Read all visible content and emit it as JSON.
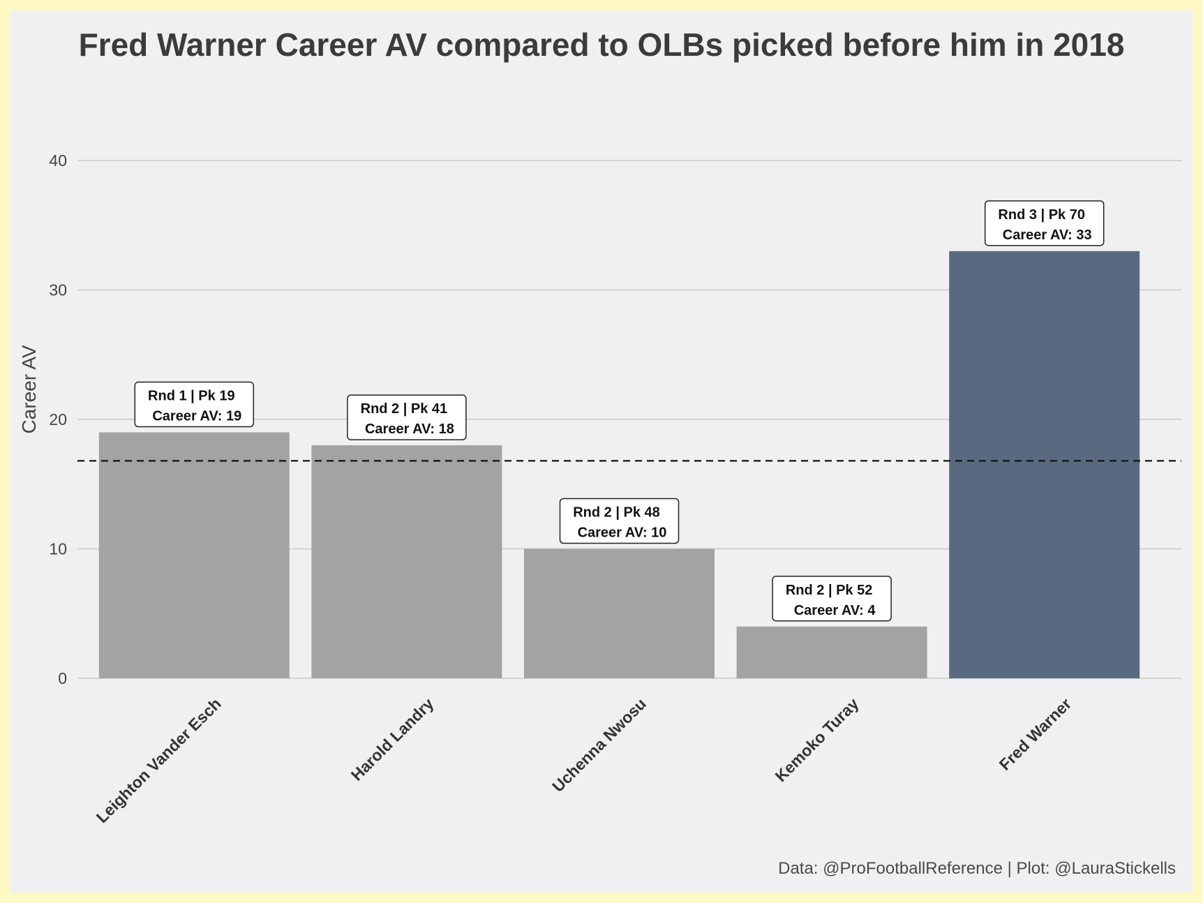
{
  "chart_data": {
    "type": "bar",
    "title": "Fred Warner Career AV compared to OLBs picked before him in 2018",
    "ylabel": "Career AV",
    "xlabel": "",
    "caption": "Data: @ProFootballReference | Plot: @LauraStickells",
    "ylim": [
      0,
      45
    ],
    "yticks": [
      0,
      10,
      20,
      30,
      40
    ],
    "grid": true,
    "legend": "none",
    "categories": [
      "Leighton Vander Esch",
      "Harold Landry",
      "Uchenna Nwosu",
      "Kemoko Turay",
      "Fred Warner"
    ],
    "values": [
      19,
      18,
      10,
      4,
      33
    ],
    "labels": [
      {
        "line1": "Rnd 1 | Pk 19",
        "line2": "Career AV: 19"
      },
      {
        "line1": "Rnd 2 | Pk 41",
        "line2": "Career AV: 18"
      },
      {
        "line1": "Rnd 2 | Pk 48",
        "line2": "Career AV: 10"
      },
      {
        "line1": "Rnd 2 | Pk 52",
        "line2": "Career AV: 4"
      },
      {
        "line1": "Rnd 3 | Pk 70",
        "line2": "Career AV: 33"
      }
    ],
    "highlight_index": 4,
    "reference_line": 16.8,
    "colors": {
      "bar": "#a2a3a5",
      "highlight": "#596a80",
      "grid": "#d2d2d4",
      "reference": "#111111"
    }
  }
}
